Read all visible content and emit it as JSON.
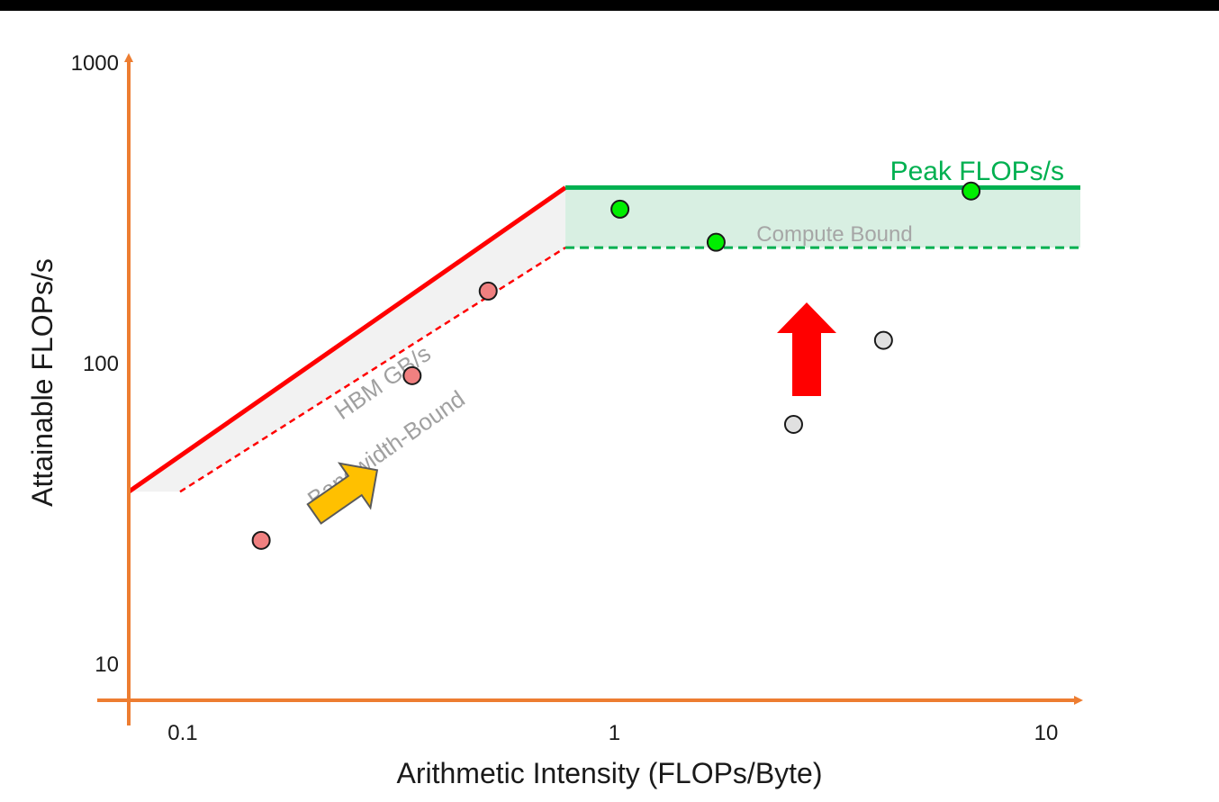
{
  "chart_data": {
    "type": "scatter",
    "scale": "log-log",
    "xlabel": "Arithmetic Intensity (FLOPs/Byte)",
    "ylabel": "Attainable FLOPs/s",
    "xlim": [
      0.075,
      12
    ],
    "ylim": [
      7.6,
      1000
    ],
    "x_ticks": [
      {
        "value": 0.1,
        "label": "0.1"
      },
      {
        "value": 1,
        "label": "1"
      },
      {
        "value": 10,
        "label": "10"
      }
    ],
    "y_ticks": [
      {
        "value": 10,
        "label": "10"
      },
      {
        "value": 100,
        "label": "100"
      },
      {
        "value": 1000,
        "label": "1000"
      }
    ],
    "roofline": {
      "peak_label": "Peak FLOPs/s",
      "peak_value": 380,
      "ridge_x": 0.77,
      "bandwidth_label": "HBM GB/s",
      "bandwidth_region_label": "Bandwidth-Bound",
      "compute_region_label": "Compute Bound",
      "compute_floor": 240,
      "colors": {
        "bandwidth": "#ff0000",
        "peak": "#00b050",
        "compute_fill": "#d8efe2",
        "bandwidth_fill": "#f2f2f2",
        "axis": "#ed7d31"
      }
    },
    "series": [
      {
        "color": "#f08080",
        "points": [
          [
            0.152,
            25.5
          ],
          [
            0.34,
            90
          ],
          [
            0.51,
            172
          ]
        ]
      },
      {
        "color": "#00ee00",
        "points": [
          [
            1.03,
            322
          ],
          [
            1.72,
            250
          ],
          [
            6.7,
            370
          ]
        ]
      },
      {
        "color": "#e0e0e0",
        "points": [
          [
            2.6,
            62
          ],
          [
            4.2,
            118
          ]
        ]
      }
    ],
    "annotations": [
      {
        "type": "arrow",
        "color": "#ffc000",
        "direction": "along-roofline"
      },
      {
        "type": "arrow",
        "color": "#ff0000",
        "direction": "up"
      }
    ]
  }
}
